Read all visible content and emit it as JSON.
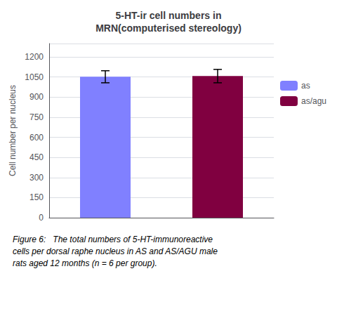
{
  "chart_data": {
    "type": "bar",
    "title": "5-HT-ir cell numbers in\nMRN(computerised stereology)",
    "categories": [
      "as",
      "as/agu"
    ],
    "values": [
      1052,
      1057
    ],
    "errors": [
      45,
      50
    ],
    "colors": [
      "#8080ff",
      "#800040"
    ],
    "ylabel": "Cell number per nucleus",
    "ylim": [
      0,
      1300
    ],
    "yticks": [
      0,
      150,
      300,
      450,
      600,
      750,
      900,
      1050,
      1200
    ],
    "grid": true,
    "legend": "right",
    "tick_labels": "y",
    "caption": "Figure 6:   The total numbers of 5-HT-immunoreactive\ncells per dorsal raphe nucleus in AS and AS/AGU male\nrats aged 12 months (n = 6 per group)."
  }
}
